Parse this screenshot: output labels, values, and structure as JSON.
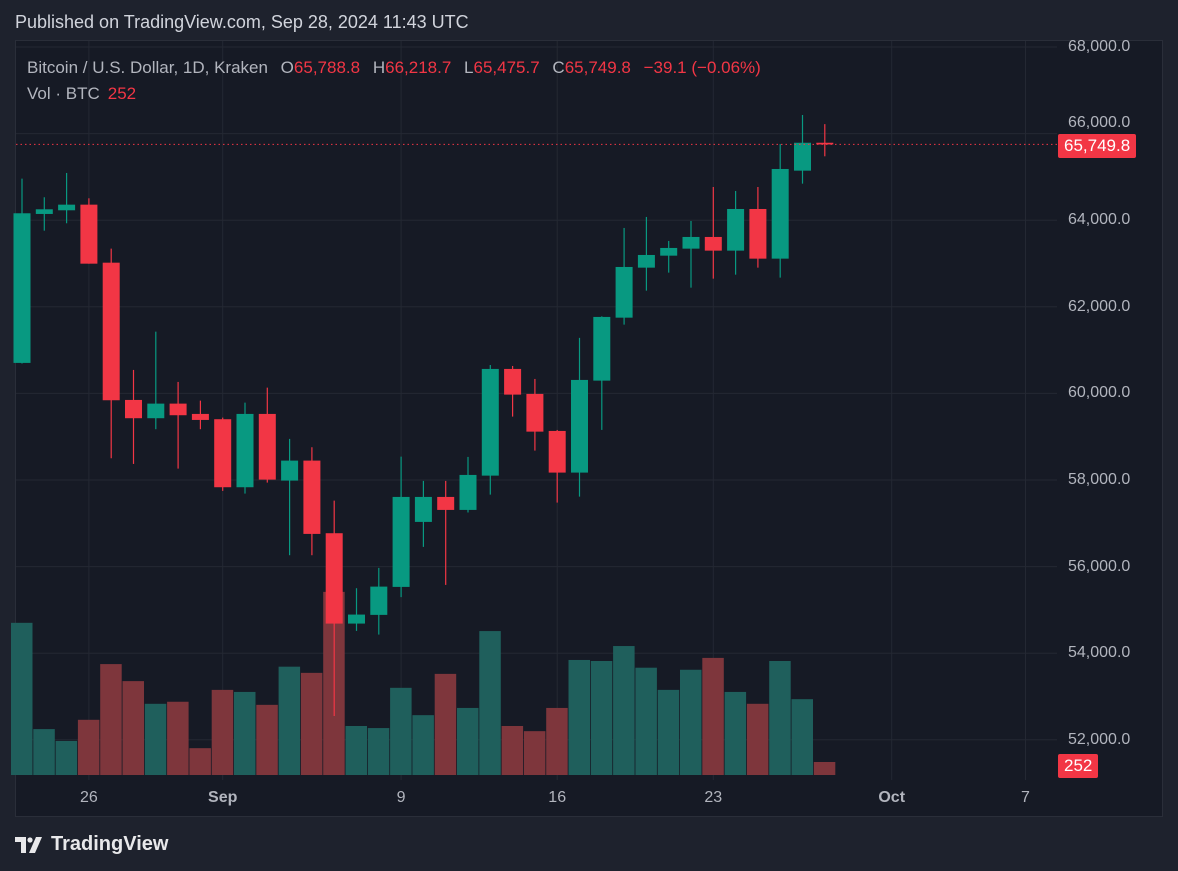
{
  "published": "Published on TradingView.com, Sep 28, 2024 11:43 UTC",
  "legend": {
    "symbol": "Bitcoin / U.S. Dollar, 1D, Kraken",
    "o_label": "O",
    "o": "65,788.8",
    "h_label": "H",
    "h": "66,218.7",
    "l_label": "L",
    "l": "65,475.7",
    "c_label": "C",
    "c": "65,749.8",
    "change": "−39.1 (−0.06%)",
    "vol_label": "Vol · BTC",
    "vol": "252"
  },
  "price_tag": "65,749.8",
  "volume_tag": "252",
  "footer": {
    "brand": "TradingView",
    "logo_icon": "tradingview-logo-icon"
  },
  "colors": {
    "up": "#089981",
    "down": "#f23645",
    "vol_up": "#1f5f5c",
    "vol_down": "#7e363c"
  },
  "chart_data": {
    "type": "candlestick",
    "title": "Bitcoin / U.S. Dollar, 1D, Kraken",
    "y_ticks": [
      "68,000.0",
      "66,000.0",
      "64,000.0",
      "62,000.0",
      "60,000.0",
      "58,000.0",
      "56,000.0",
      "54,000.0",
      "52,000.0"
    ],
    "y_tick_values": [
      68000,
      66000,
      64000,
      62000,
      60000,
      58000,
      56000,
      54000,
      52000
    ],
    "x_ticks": [
      {
        "label": "26",
        "day": 3
      },
      {
        "label": "Sep",
        "day": 9
      },
      {
        "label": "9",
        "day": 17
      },
      {
        "label": "16",
        "day": 24
      },
      {
        "label": "23",
        "day": 31
      },
      {
        "label": "Oct",
        "day": 39
      },
      {
        "label": "7",
        "day": 45
      }
    ],
    "ylim": [
      51200,
      68200
    ],
    "x_start": "2024-08-23",
    "candles": [
      {
        "d": "Aug 23",
        "o": 60704,
        "h": 64959,
        "l": 60690,
        "c": 64160,
        "v": 2950
      },
      {
        "d": "Aug 24",
        "o": 64144,
        "h": 64530,
        "l": 63758,
        "c": 64252,
        "v": 890
      },
      {
        "d": "Aug 25",
        "o": 64229,
        "h": 65091,
        "l": 63929,
        "c": 64359,
        "v": 660
      },
      {
        "d": "Aug 26",
        "o": 64359,
        "h": 64506,
        "l": 62996,
        "c": 62996,
        "v": 1070
      },
      {
        "d": "Aug 27",
        "o": 63019,
        "h": 63343,
        "l": 58503,
        "c": 59842,
        "v": 2150
      },
      {
        "d": "Aug 28",
        "o": 59849,
        "h": 60542,
        "l": 58371,
        "c": 59427,
        "v": 1820
      },
      {
        "d": "Aug 29",
        "o": 59427,
        "h": 61426,
        "l": 59173,
        "c": 59764,
        "v": 1380
      },
      {
        "d": "Aug 30",
        "o": 59764,
        "h": 60265,
        "l": 58263,
        "c": 59496,
        "v": 1420
      },
      {
        "d": "Aug 31",
        "o": 59526,
        "h": 59833,
        "l": 59173,
        "c": 59387,
        "v": 520
      },
      {
        "d": "Sep 1",
        "o": 59404,
        "h": 59441,
        "l": 57748,
        "c": 57833,
        "v": 1650
      },
      {
        "d": "Sep 2",
        "o": 57833,
        "h": 59787,
        "l": 57686,
        "c": 59526,
        "v": 1610
      },
      {
        "d": "Sep 3",
        "o": 59526,
        "h": 60133,
        "l": 57940,
        "c": 58009,
        "v": 1360
      },
      {
        "d": "Sep 4",
        "o": 57986,
        "h": 58949,
        "l": 56263,
        "c": 58448,
        "v": 2100
      },
      {
        "d": "Sep 5",
        "o": 58448,
        "h": 58757,
        "l": 56263,
        "c": 56755,
        "v": 1980
      },
      {
        "d": "Sep 6",
        "o": 56771,
        "h": 57524,
        "l": 52550,
        "c": 54684,
        "v": 3550
      },
      {
        "d": "Sep 7",
        "o": 54684,
        "h": 55501,
        "l": 54515,
        "c": 54892,
        "v": 950
      },
      {
        "d": "Sep 8",
        "o": 54885,
        "h": 55970,
        "l": 54430,
        "c": 55538,
        "v": 910
      },
      {
        "d": "Sep 9",
        "o": 55531,
        "h": 58540,
        "l": 55294,
        "c": 57609,
        "v": 1690
      },
      {
        "d": "Sep 10",
        "o": 57032,
        "h": 57979,
        "l": 56455,
        "c": 57609,
        "v": 1160
      },
      {
        "d": "Sep 11",
        "o": 57609,
        "h": 57979,
        "l": 55577,
        "c": 57309,
        "v": 1960
      },
      {
        "d": "Sep 12",
        "o": 57309,
        "h": 58533,
        "l": 57250,
        "c": 58117,
        "v": 1300
      },
      {
        "d": "Sep 13",
        "o": 58101,
        "h": 60657,
        "l": 57663,
        "c": 60565,
        "v": 2790
      },
      {
        "d": "Sep 14",
        "o": 60565,
        "h": 60634,
        "l": 59464,
        "c": 59972,
        "v": 950
      },
      {
        "d": "Sep 15",
        "o": 59988,
        "h": 60334,
        "l": 58679,
        "c": 59117,
        "v": 850
      },
      {
        "d": "Sep 16",
        "o": 59133,
        "h": 59156,
        "l": 57478,
        "c": 58171,
        "v": 1300
      },
      {
        "d": "Sep 17",
        "o": 58171,
        "h": 61281,
        "l": 57616,
        "c": 60311,
        "v": 2230
      },
      {
        "d": "Sep 18",
        "o": 60295,
        "h": 61780,
        "l": 59157,
        "c": 61766,
        "v": 2210
      },
      {
        "d": "Sep 19",
        "o": 61749,
        "h": 63821,
        "l": 61588,
        "c": 62920,
        "v": 2500
      },
      {
        "d": "Sep 20",
        "o": 62904,
        "h": 64075,
        "l": 62373,
        "c": 63197,
        "v": 2080
      },
      {
        "d": "Sep 21",
        "o": 63181,
        "h": 63521,
        "l": 62789,
        "c": 63359,
        "v": 1650
      },
      {
        "d": "Sep 22",
        "o": 63343,
        "h": 63982,
        "l": 62442,
        "c": 63613,
        "v": 2040
      },
      {
        "d": "Sep 23",
        "o": 63613,
        "h": 64767,
        "l": 62650,
        "c": 63297,
        "v": 2270
      },
      {
        "d": "Sep 24",
        "o": 63297,
        "h": 64675,
        "l": 62742,
        "c": 64259,
        "v": 1610
      },
      {
        "d": "Sep 25",
        "o": 64259,
        "h": 64767,
        "l": 62904,
        "c": 63112,
        "v": 1380
      },
      {
        "d": "Sep 26",
        "o": 63112,
        "h": 65760,
        "l": 62673,
        "c": 65183,
        "v": 2210
      },
      {
        "d": "Sep 27",
        "o": 65144,
        "h": 66430,
        "l": 64844,
        "c": 65788.8,
        "v": 1470
      },
      {
        "d": "Sep 28",
        "o": 65788.8,
        "h": 66218.7,
        "l": 65475.7,
        "c": 65749.8,
        "v": 252
      }
    ],
    "last_price": 65749.8,
    "grid": true
  }
}
